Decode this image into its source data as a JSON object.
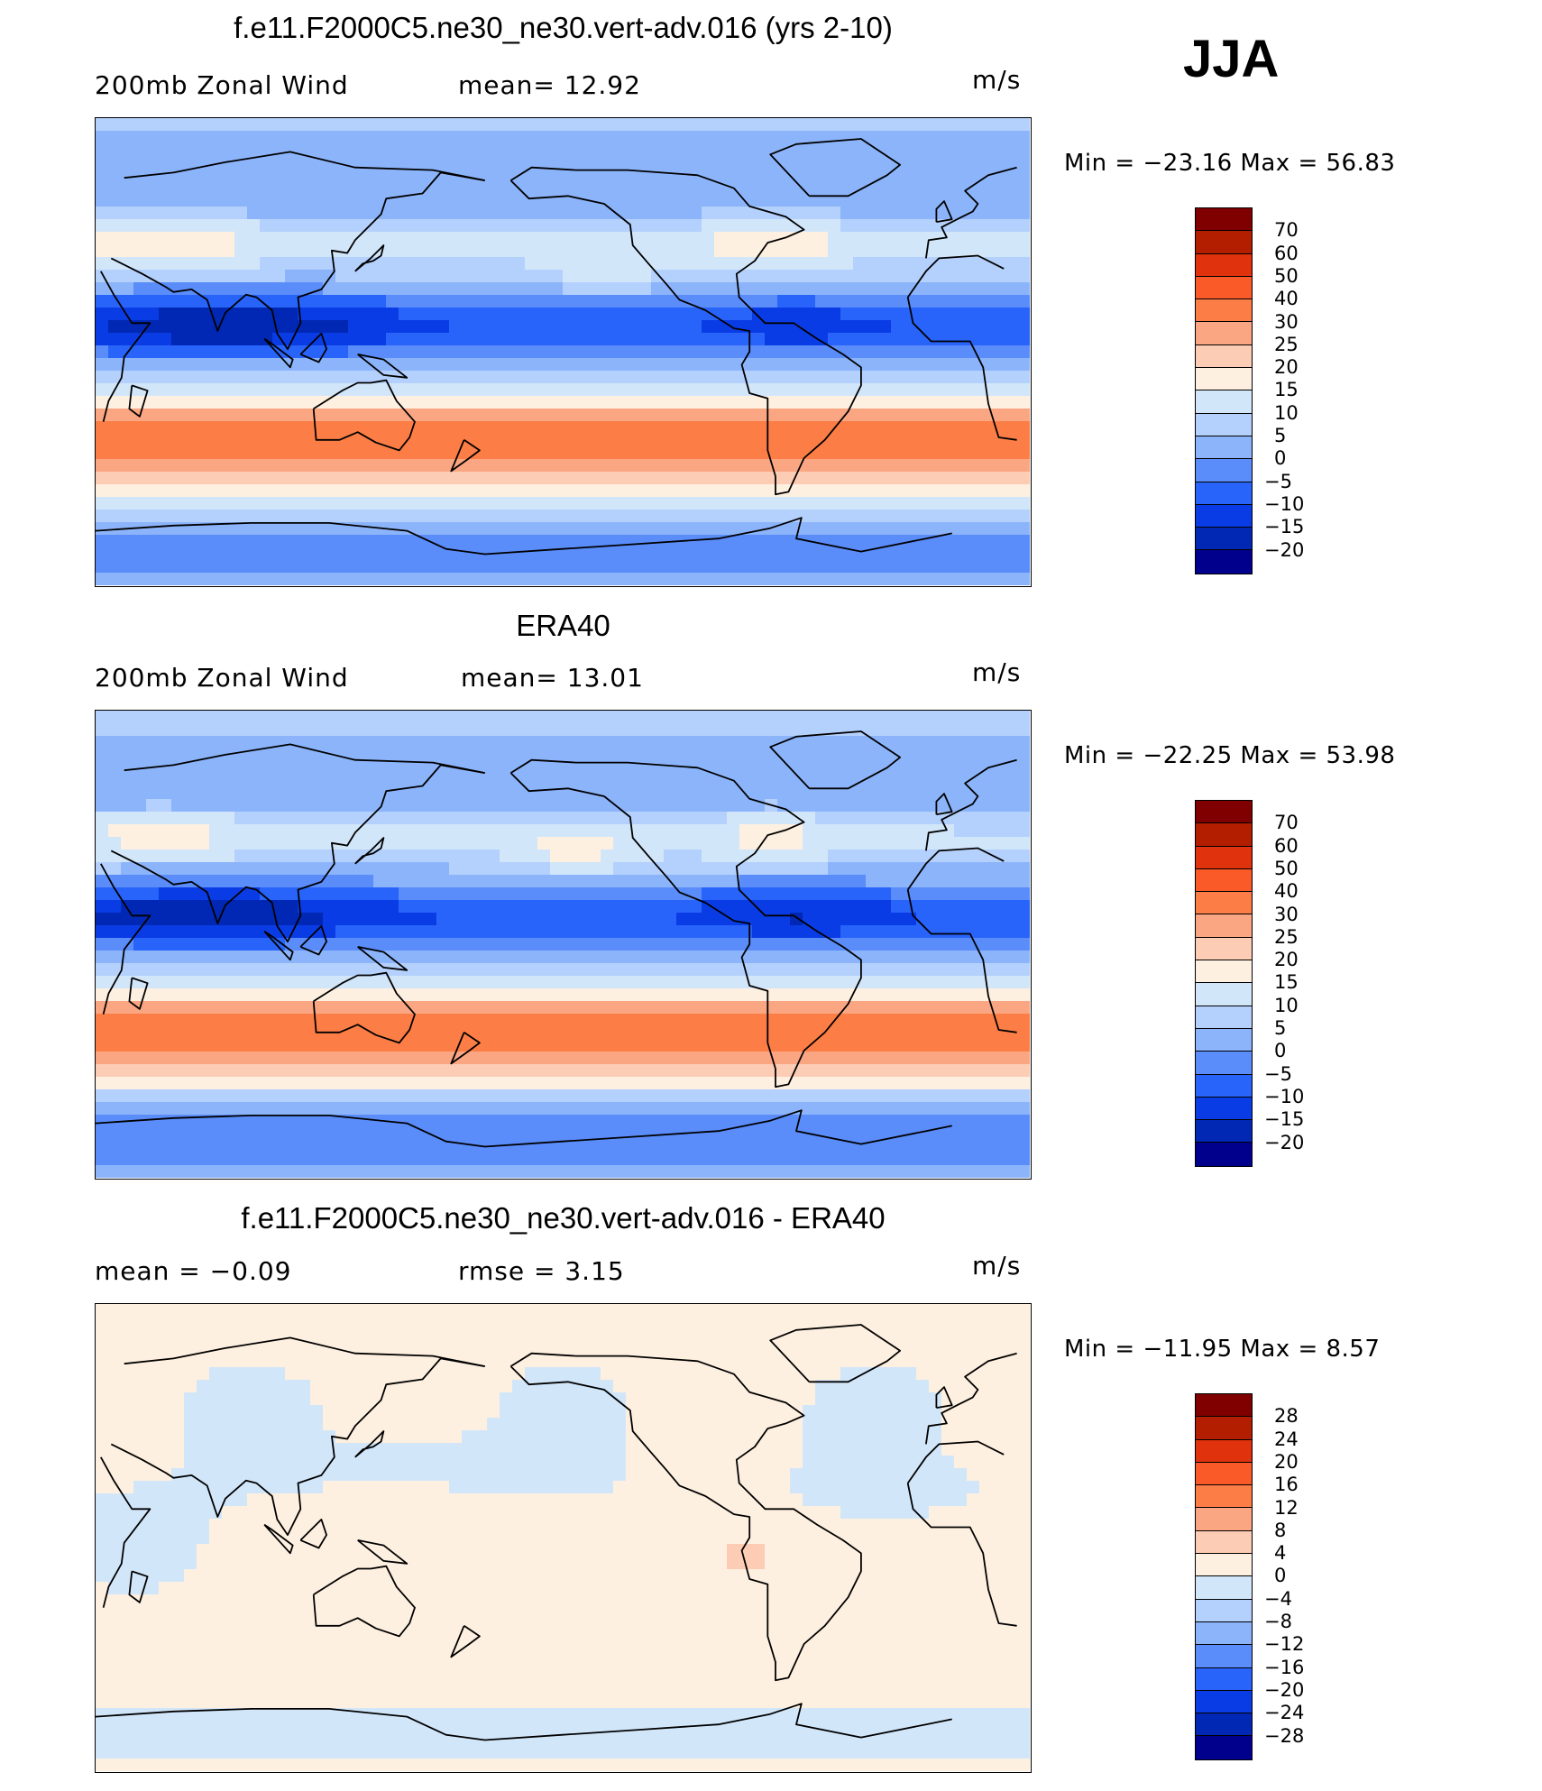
{
  "season": "JJA",
  "panels": [
    {
      "title": "f.e11.F2000C5.ne30_ne30.vert-adv.016 (yrs 2-10)",
      "left_label": "200mb  Zonal  Wind",
      "mid_label": "mean=   12.92",
      "units": "m/s",
      "min_max": "Min  =  −23.16  Max  =    56.83",
      "colorbar": {
        "labels": [
          "70",
          "60",
          "50",
          "40",
          "30",
          "25",
          "20",
          "15",
          "10",
          "5",
          "0",
          "−5",
          "−10",
          "−15",
          "−20"
        ],
        "colors": [
          "#800000",
          "#b41e00",
          "#e0320c",
          "#fa5a28",
          "#fc7e46",
          "#fba682",
          "#fdccb4",
          "#fef0e0",
          "#d2e6fa",
          "#b4d0fc",
          "#8cb4fa",
          "#5a8cfa",
          "#2864fa",
          "#0a3ce6",
          "#0028b4",
          "#00008c"
        ]
      },
      "field": "model"
    },
    {
      "title": "ERA40",
      "left_label": "200mb  Zonal  Wind",
      "mid_label": "mean=   13.01",
      "units": "m/s",
      "min_max": "Min  =  −22.25  Max  =    53.98",
      "colorbar": {
        "labels": [
          "70",
          "60",
          "50",
          "40",
          "30",
          "25",
          "20",
          "15",
          "10",
          "5",
          "0",
          "−5",
          "−10",
          "−15",
          "−20"
        ],
        "colors": [
          "#800000",
          "#b41e00",
          "#e0320c",
          "#fa5a28",
          "#fc7e46",
          "#fba682",
          "#fdccb4",
          "#fef0e0",
          "#d2e6fa",
          "#b4d0fc",
          "#8cb4fa",
          "#5a8cfa",
          "#2864fa",
          "#0a3ce6",
          "#0028b4",
          "#00008c"
        ]
      },
      "field": "obs"
    },
    {
      "title": "f.e11.F2000C5.ne30_ne30.vert-adv.016 - ERA40",
      "left_label": "mean  =    −0.09",
      "mid_label": "rmse  =     3.15",
      "units": "m/s",
      "min_max": "Min  =  −11.95  Max  =     8.57",
      "colorbar": {
        "labels": [
          "28",
          "24",
          "20",
          "16",
          "12",
          "8",
          "4",
          "0",
          "−4",
          "−8",
          "−12",
          "−16",
          "−20",
          "−24",
          "−28"
        ],
        "colors": [
          "#800000",
          "#b41e00",
          "#e0320c",
          "#fa5a28",
          "#fc7e46",
          "#fba682",
          "#fdccb4",
          "#fef0e0",
          "#d2e6fa",
          "#b4d0fc",
          "#8cb4fa",
          "#5a8cfa",
          "#2864fa",
          "#0a3ce6",
          "#0028b4",
          "#00008c"
        ]
      },
      "field": "diff"
    }
  ]
}
